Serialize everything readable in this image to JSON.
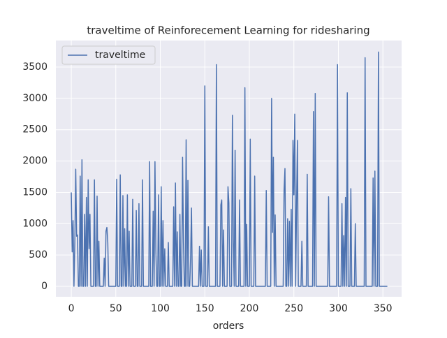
{
  "chart_data": {
    "type": "line",
    "title": "traveltime of Reinforecement Learning for ridesharing",
    "x_label": "orders",
    "x": [
      0,
      1,
      2,
      3,
      4,
      5,
      6,
      7,
      8,
      9,
      10,
      11,
      12,
      13,
      14,
      15,
      16,
      17,
      18,
      19,
      20,
      21,
      22,
      23,
      24,
      25,
      26,
      27,
      28,
      29,
      30,
      31,
      32,
      33,
      34,
      35,
      36,
      37,
      38,
      39,
      40,
      41,
      42,
      43,
      44,
      45,
      46,
      47,
      48,
      49,
      50,
      51,
      52,
      53,
      54,
      55,
      56,
      57,
      58,
      59,
      60,
      61,
      62,
      63,
      64,
      65,
      66,
      67,
      68,
      69,
      70,
      71,
      72,
      73,
      74,
      75,
      76,
      77,
      78,
      79,
      80,
      81,
      82,
      83,
      84,
      85,
      86,
      87,
      88,
      89,
      90,
      91,
      92,
      93,
      94,
      95,
      96,
      97,
      98,
      99,
      100,
      101,
      102,
      103,
      104,
      105,
      106,
      107,
      108,
      109,
      110,
      111,
      112,
      113,
      114,
      115,
      116,
      117,
      118,
      119,
      120,
      121,
      122,
      123,
      124,
      125,
      126,
      127,
      128,
      129,
      130,
      131,
      132,
      133,
      134,
      135,
      136,
      137,
      138,
      139,
      140,
      141,
      142,
      143,
      144,
      145,
      146,
      147,
      148,
      149,
      150,
      151,
      152,
      153,
      154,
      155,
      156,
      157,
      158,
      159,
      160,
      161,
      162,
      163,
      164,
      165,
      166,
      167,
      168,
      169,
      170,
      171,
      172,
      173,
      174,
      175,
      176,
      177,
      178,
      179,
      180,
      181,
      182,
      183,
      184,
      185,
      186,
      187,
      188,
      189,
      190,
      191,
      192,
      193,
      194,
      195,
      196,
      197,
      198,
      199,
      200,
      201,
      202,
      203,
      204,
      205,
      206,
      207,
      208,
      209,
      210,
      211,
      212,
      213,
      214,
      215,
      216,
      217,
      218,
      219,
      220,
      221,
      222,
      223,
      224,
      225,
      226,
      227,
      228,
      229,
      230,
      231,
      232,
      233,
      234,
      235,
      236,
      237,
      238,
      239,
      240,
      241,
      242,
      243,
      244,
      245,
      246,
      247,
      248,
      249,
      250,
      251,
      252,
      253,
      254,
      255,
      256,
      257,
      258,
      259,
      260,
      261,
      262,
      263,
      264,
      265,
      266,
      267,
      268,
      269,
      270,
      271,
      272,
      273,
      274,
      275,
      276,
      277,
      278,
      279,
      280,
      281,
      282,
      283,
      284,
      285,
      286,
      287,
      288,
      289,
      290,
      291,
      292,
      293,
      294,
      295,
      296,
      297,
      298,
      299,
      300,
      301,
      302,
      303,
      304,
      305,
      306,
      307,
      308,
      309,
      310,
      311,
      312,
      313,
      314,
      315,
      316,
      317,
      318,
      319,
      320,
      321,
      322,
      323,
      324,
      325,
      326,
      327,
      328,
      329,
      330,
      331,
      332,
      333,
      334,
      335,
      336,
      337,
      338,
      339,
      340,
      341,
      342,
      343,
      344,
      345,
      346,
      347,
      348,
      349,
      350,
      351,
      352,
      353,
      354,
      355
    ],
    "series": [
      {
        "name": "traveltime",
        "color": "#4c72b0",
        "values": [
          1500,
          550,
          1050,
          0,
          700,
          1870,
          800,
          820,
          0,
          0,
          1760,
          0,
          2020,
          0,
          0,
          1150,
          0,
          1420,
          0,
          1700,
          600,
          1150,
          0,
          0,
          0,
          0,
          1700,
          0,
          0,
          1440,
          0,
          720,
          0,
          0,
          0,
          0,
          0,
          450,
          0,
          880,
          940,
          700,
          0,
          0,
          0,
          0,
          0,
          0,
          0,
          0,
          0,
          1710,
          0,
          0,
          0,
          1780,
          0,
          0,
          1450,
          0,
          920,
          0,
          0,
          1460,
          0,
          880,
          0,
          0,
          0,
          1390,
          0,
          0,
          0,
          1210,
          0,
          0,
          1320,
          0,
          0,
          0,
          1700,
          0,
          0,
          0,
          0,
          0,
          0,
          0,
          1990,
          0,
          0,
          0,
          1200,
          0,
          1990,
          570,
          0,
          0,
          1460,
          0,
          0,
          1590,
          0,
          1050,
          0,
          600,
          0,
          0,
          0,
          700,
          0,
          0,
          0,
          0,
          0,
          1270,
          0,
          1650,
          0,
          870,
          0,
          0,
          1150,
          0,
          0,
          2060,
          710,
          0,
          0,
          2340,
          0,
          1690,
          0,
          0,
          450,
          1250,
          0,
          0,
          0,
          0,
          0,
          0,
          0,
          0,
          640,
          0,
          580,
          0,
          0,
          0,
          3200,
          0,
          0,
          0,
          950,
          0,
          0,
          0,
          0,
          0,
          0,
          0,
          0,
          3540,
          0,
          0,
          0,
          0,
          1300,
          1380,
          0,
          900,
          0,
          0,
          0,
          0,
          1590,
          1330,
          0,
          0,
          0,
          2730,
          750,
          0,
          2170,
          0,
          0,
          0,
          0,
          1380,
          0,
          0,
          0,
          0,
          0,
          3170,
          0,
          990,
          0,
          0,
          0,
          2350,
          0,
          0,
          0,
          0,
          1760,
          0,
          0,
          0,
          0,
          0,
          0,
          0,
          0,
          0,
          0,
          0,
          0,
          1530,
          0,
          0,
          0,
          0,
          0,
          3000,
          860,
          2060,
          0,
          1140,
          0,
          0,
          0,
          0,
          0,
          0,
          0,
          0,
          0,
          1540,
          1880,
          0,
          0,
          1080,
          0,
          1040,
          0,
          1230,
          0,
          2330,
          1460,
          2750,
          0,
          1260,
          2330,
          0,
          0,
          0,
          0,
          720,
          0,
          0,
          0,
          0,
          0,
          1790,
          0,
          0,
          0,
          0,
          0,
          0,
          2790,
          0,
          3080,
          0,
          0,
          0,
          0,
          0,
          0,
          0,
          0,
          0,
          0,
          0,
          0,
          0,
          0,
          1430,
          0,
          0,
          0,
          0,
          0,
          0,
          0,
          0,
          0,
          3540,
          0,
          0,
          0,
          0,
          1320,
          0,
          810,
          0,
          1420,
          0,
          3090,
          0,
          0,
          0,
          1560,
          0,
          0,
          0,
          0,
          1000,
          0,
          0,
          0,
          0,
          0,
          0,
          0,
          0,
          0,
          0,
          3650,
          0,
          0,
          0,
          0,
          0,
          0,
          0,
          0,
          1730,
          0,
          1840,
          0,
          0,
          0,
          3740,
          0,
          0,
          0,
          0,
          0,
          0,
          0,
          0,
          0,
          0
        ]
      }
    ],
    "xlim": [
      -17.3,
      371
    ],
    "ylim": [
      -167,
      3924
    ],
    "xticks": [
      0,
      50,
      100,
      150,
      200,
      250,
      300,
      350
    ],
    "yticks": [
      0,
      500,
      1000,
      1500,
      2000,
      2500,
      3000,
      3500
    ],
    "grid": true,
    "legend": "upper left"
  }
}
